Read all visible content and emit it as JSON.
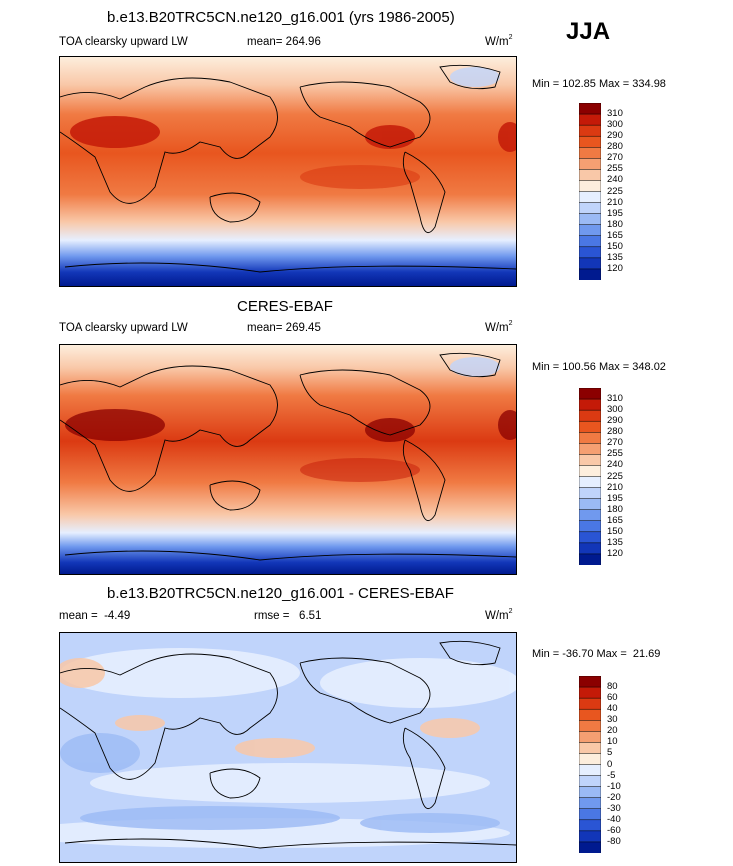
{
  "season": "JJA",
  "panels": [
    {
      "title": "b.e13.B20TRC5CN.ne120_g16.001 (yrs 1986-2005)",
      "left_label": "TOA clearsky upward LW",
      "center_label": "mean= 264.96",
      "units": "W/m",
      "units_sup": "2",
      "minmax": "Min = 102.85 Max = 334.98",
      "colorbar_levels": [
        "310",
        "300",
        "290",
        "280",
        "270",
        "255",
        "240",
        "225",
        "210",
        "195",
        "180",
        "165",
        "150",
        "135",
        "120"
      ],
      "colorbar_colors": [
        "#8b0000",
        "#c41a08",
        "#db3a12",
        "#e8561f",
        "#f07a43",
        "#f59f72",
        "#f9c8a8",
        "#fdeedd",
        "#e6efff",
        "#c0d4fb",
        "#9bbaf5",
        "#7099ee",
        "#4a77e4",
        "#2a55d4",
        "#1236b8",
        "#001a8f"
      ]
    },
    {
      "title": "CERES-EBAF",
      "left_label": "TOA clearsky upward LW",
      "center_label": "mean= 269.45",
      "units": "W/m",
      "units_sup": "2",
      "minmax": "Min = 100.56 Max = 348.02",
      "colorbar_levels": [
        "310",
        "300",
        "290",
        "280",
        "270",
        "255",
        "240",
        "225",
        "210",
        "195",
        "180",
        "165",
        "150",
        "135",
        "120"
      ],
      "colorbar_colors": [
        "#8b0000",
        "#c41a08",
        "#db3a12",
        "#e8561f",
        "#f07a43",
        "#f59f72",
        "#f9c8a8",
        "#fdeedd",
        "#e6efff",
        "#c0d4fb",
        "#9bbaf5",
        "#7099ee",
        "#4a77e4",
        "#2a55d4",
        "#1236b8",
        "#001a8f"
      ]
    },
    {
      "title": "b.e13.B20TRC5CN.ne120_g16.001 - CERES-EBAF",
      "left_label": "mean =  -4.49",
      "center_label": "rmse =   6.51",
      "units": "W/m",
      "units_sup": "2",
      "minmax": "Min = -36.70 Max =  21.69",
      "colorbar_levels": [
        "80",
        "60",
        "40",
        "30",
        "20",
        "10",
        "5",
        "0",
        "-5",
        "-10",
        "-20",
        "-30",
        "-40",
        "-60",
        "-80"
      ],
      "colorbar_colors": [
        "#8b0000",
        "#c41a08",
        "#db3a12",
        "#e8561f",
        "#f07a43",
        "#f59f72",
        "#f9c8a8",
        "#fdeedd",
        "#e6efff",
        "#c0d4fb",
        "#9bbaf5",
        "#7099ee",
        "#4a77e4",
        "#2a55d4",
        "#1236b8",
        "#001a8f"
      ]
    }
  ]
}
